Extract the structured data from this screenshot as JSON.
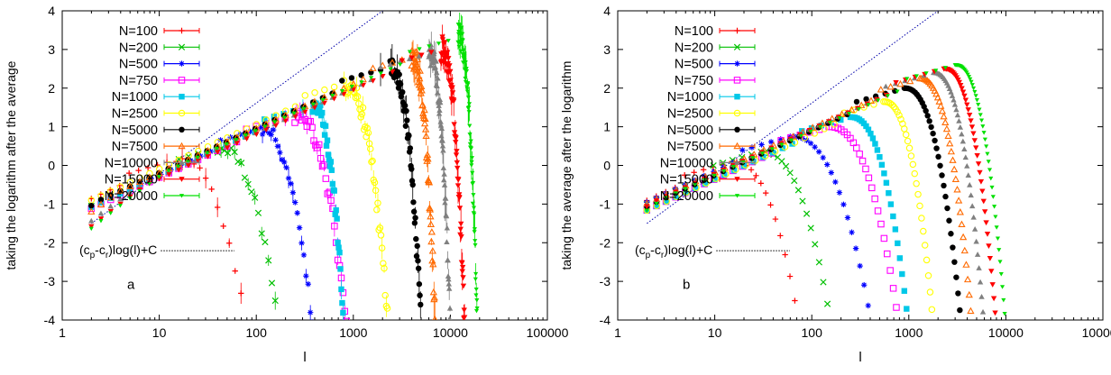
{
  "chart_data": [
    {
      "type": "scatter",
      "panel_label": "a",
      "xlabel": "l",
      "ylabel": "taking the logarithm after the average",
      "xscale": "log",
      "xlim": [
        1,
        100000
      ],
      "ylim": [
        -4,
        4
      ],
      "x_ticks": [
        1,
        10,
        100,
        1000,
        10000,
        100000
      ],
      "x_tick_labels": [
        "1",
        "10",
        "100",
        "1000",
        "10000",
        "100000"
      ],
      "y_ticks": [
        -4,
        -3,
        -2,
        -1,
        0,
        1,
        2,
        3,
        4
      ],
      "y_tick_labels": [
        "-4",
        "-3",
        "-2",
        "-1",
        "0",
        "1",
        "2",
        "3",
        "4"
      ],
      "grid": false,
      "legend_position": "top-left",
      "annotation": {
        "text": "(cp-cr)log(l)+C",
        "text_base": "(c",
        "sub1": "p",
        "text_mid": "-c",
        "sub2": "r",
        "text_end": ")log(l)+C",
        "x": 1.5,
        "y": -2.3
      },
      "reference_line": {
        "x": [
          2,
          2000
        ],
        "y": [
          -1.5,
          4
        ],
        "color": "#0000aa",
        "style": "dotted"
      },
      "series": [
        {
          "name": "N=100",
          "color": "#ff0000",
          "marker": "plus",
          "peak_l": 15,
          "peak_y": 0.15,
          "end_l": 80
        },
        {
          "name": "N=200",
          "color": "#00c000",
          "marker": "x",
          "peak_l": 40,
          "peak_y": 0.45,
          "end_l": 170
        },
        {
          "name": "N=500",
          "color": "#0000ff",
          "marker": "star",
          "peak_l": 110,
          "peak_y": 0.95,
          "end_l": 380
        },
        {
          "name": "N=750",
          "color": "#ff00ff",
          "marker": "square-open",
          "peak_l": 250,
          "peak_y": 1.3,
          "end_l": 850
        },
        {
          "name": "N=1000",
          "color": "#00c8e8",
          "marker": "square",
          "peak_l": 380,
          "peak_y": 1.55,
          "end_l": 800
        },
        {
          "name": "N=2500",
          "color": "#ffff00",
          "marker": "circle-open",
          "peak_l": 800,
          "peak_y": 2.1,
          "end_l": 2300
        },
        {
          "name": "N=5000",
          "color": "#000000",
          "marker": "circle",
          "peak_l": 2400,
          "peak_y": 2.55,
          "end_l": 5000
        },
        {
          "name": "N=7500",
          "color": "#ff6a00",
          "marker": "triangle-open",
          "peak_l": 4000,
          "peak_y": 2.8,
          "end_l": 7000
        },
        {
          "name": "N=10000",
          "color": "#808080",
          "marker": "triangle",
          "peak_l": 6000,
          "peak_y": 2.9,
          "end_l": 10000
        },
        {
          "name": "N=15000",
          "color": "#ff0000",
          "marker": "triangle-down",
          "peak_l": 8000,
          "peak_y": 3.0,
          "end_l": 14000
        },
        {
          "name": "N=20000",
          "color": "#00e000",
          "marker": "triangle-down-small",
          "peak_l": 12000,
          "peak_y": 3.3,
          "end_l": 19000
        }
      ]
    },
    {
      "type": "scatter",
      "panel_label": "b",
      "xlabel": "l",
      "ylabel": "taking the average after the logarithm",
      "xscale": "log",
      "xlim": [
        1,
        100000
      ],
      "ylim": [
        -4,
        4
      ],
      "x_ticks": [
        1,
        10,
        100,
        1000,
        10000,
        100000
      ],
      "x_tick_labels": [
        "1",
        "10",
        "100",
        "1000",
        "10000",
        "100000"
      ],
      "y_ticks": [
        -4,
        -3,
        -2,
        -1,
        0,
        1,
        2,
        3,
        4
      ],
      "y_tick_labels": [
        "-4",
        "-3",
        "-2",
        "-1",
        "0",
        "1",
        "2",
        "3",
        "4"
      ],
      "grid": false,
      "legend_position": "top-left",
      "annotation": {
        "text": "(cp-cr)log(l)+C",
        "text_base": "(c",
        "sub1": "p",
        "text_mid": "-c",
        "sub2": "r",
        "text_end": ")log(l)+C",
        "x": 1.5,
        "y": -2.3
      },
      "reference_line": {
        "x": [
          2,
          2000
        ],
        "y": [
          -1.5,
          4
        ],
        "color": "#0000aa",
        "style": "dotted"
      },
      "series": [
        {
          "name": "N=100",
          "color": "#ff0000",
          "marker": "plus",
          "peak_l": 15,
          "peak_y": 0.1,
          "end_l": 75
        },
        {
          "name": "N=200",
          "color": "#00c000",
          "marker": "x",
          "peak_l": 30,
          "peak_y": 0.35,
          "end_l": 160
        },
        {
          "name": "N=500",
          "color": "#0000ff",
          "marker": "star",
          "peak_l": 60,
          "peak_y": 0.75,
          "end_l": 420
        },
        {
          "name": "N=750",
          "color": "#ff00ff",
          "marker": "square-open",
          "peak_l": 150,
          "peak_y": 1.0,
          "end_l": 800
        },
        {
          "name": "N=1000",
          "color": "#00c8e8",
          "marker": "square",
          "peak_l": 250,
          "peak_y": 1.25,
          "end_l": 1000
        },
        {
          "name": "N=2500",
          "color": "#ffff00",
          "marker": "circle-open",
          "peak_l": 550,
          "peak_y": 1.65,
          "end_l": 1800
        },
        {
          "name": "N=5000",
          "color": "#000000",
          "marker": "circle",
          "peak_l": 900,
          "peak_y": 2.0,
          "end_l": 3500
        },
        {
          "name": "N=7500",
          "color": "#ff6a00",
          "marker": "triangle-open",
          "peak_l": 1300,
          "peak_y": 2.25,
          "end_l": 4500
        },
        {
          "name": "N=10000",
          "color": "#808080",
          "marker": "triangle",
          "peak_l": 1800,
          "peak_y": 2.4,
          "end_l": 6000
        },
        {
          "name": "N=15000",
          "color": "#ff0000",
          "marker": "triangle-down",
          "peak_l": 2300,
          "peak_y": 2.5,
          "end_l": 8000
        },
        {
          "name": "N=20000",
          "color": "#00e000",
          "marker": "triangle-down-small",
          "peak_l": 3000,
          "peak_y": 2.6,
          "end_l": 10000
        }
      ]
    }
  ]
}
